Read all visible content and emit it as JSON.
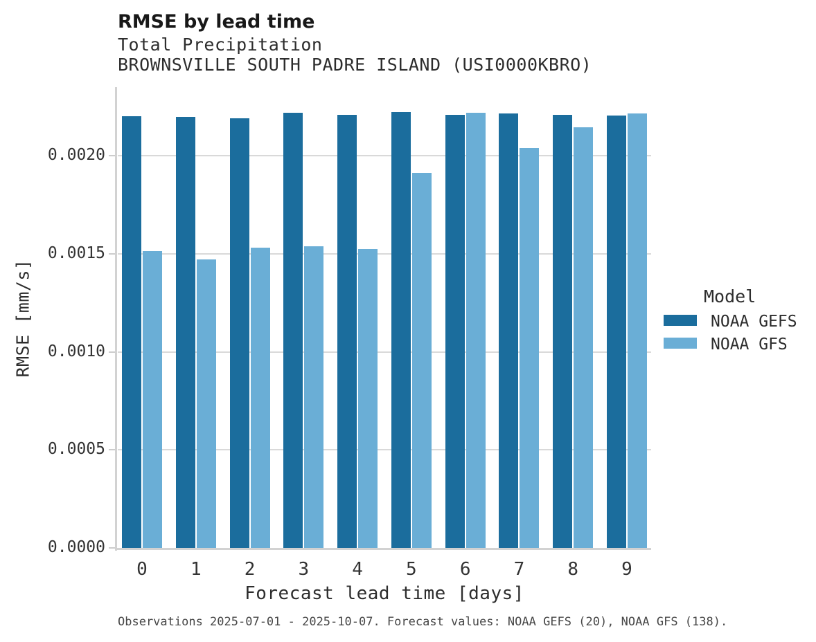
{
  "chart_data": {
    "type": "bar",
    "title": "RMSE by lead time",
    "subtitle": "Total Precipitation",
    "subtitle2": "BROWNSVILLE SOUTH PADRE ISLAND (USI0000KBRO)",
    "xlabel": "Forecast lead time [days]",
    "ylabel": "RMSE [mm/s]",
    "categories": [
      "0",
      "1",
      "2",
      "3",
      "4",
      "5",
      "6",
      "7",
      "8",
      "9"
    ],
    "series": [
      {
        "name": "NOAA GEFS",
        "color": "#1b6d9d",
        "values": [
          0.002201,
          0.002197,
          0.002192,
          0.002218,
          0.00221,
          0.002223,
          0.00221,
          0.002217,
          0.002208,
          0.002206
        ]
      },
      {
        "name": "NOAA GFS",
        "color": "#6aaed6",
        "values": [
          0.001513,
          0.001471,
          0.00153,
          0.001539,
          0.001525,
          0.001912,
          0.00222,
          0.00204,
          0.002146,
          0.002216
        ]
      }
    ],
    "ylim": [
      0,
      0.00235
    ],
    "yticks": [
      {
        "value": 0.0,
        "label": "0.0000"
      },
      {
        "value": 0.0005,
        "label": "0.0005"
      },
      {
        "value": 0.001,
        "label": "0.0010"
      },
      {
        "value": 0.0015,
        "label": "0.0015"
      },
      {
        "value": 0.002,
        "label": "0.0020"
      }
    ],
    "grid": "horizontal",
    "legend": {
      "title": "Model",
      "position": "right"
    },
    "caption": "Observations 2025-07-01 - 2025-10-07. Forecast values: NOAA GEFS (20), NOAA GFS (138)."
  }
}
